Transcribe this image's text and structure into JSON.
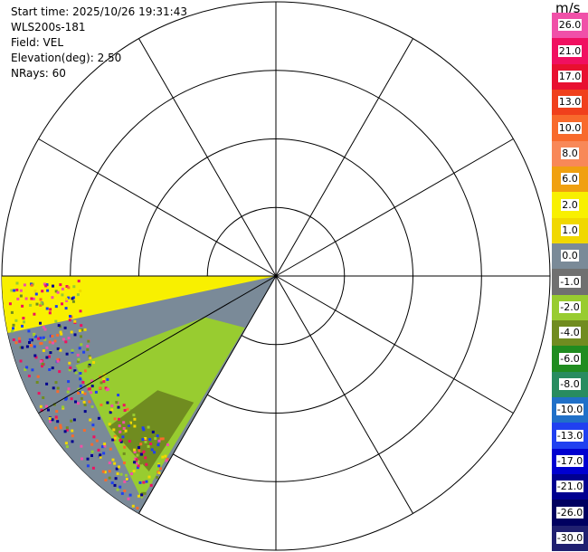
{
  "info": {
    "start_time": "Start time: 2025/10/26 19:31:43",
    "instrument": "WLS200s-181",
    "field": "Field: VEL",
    "elevation": "Elevation(deg): 2.50",
    "nrays": "NRays: 60"
  },
  "colorbar": {
    "unit": "m/s",
    "ticks": [
      "26.0",
      "21.0",
      "17.0",
      "13.0",
      "10.0",
      "8.0",
      "6.0",
      "2.0",
      "1.0",
      "0.0",
      "-1.0",
      "-2.0",
      "-4.0",
      "-6.0",
      "-8.0",
      "-10.0",
      "-13.0",
      "-17.0",
      "-21.0",
      "-26.0",
      "-30.0"
    ],
    "colors": [
      "#f050a8",
      "#f01060",
      "#e81030",
      "#f0401c",
      "#f86a2c",
      "#f88858",
      "#f0a010",
      "#f8f000",
      "#f0d800",
      "#7a8a98",
      "#707070",
      "#98cc30",
      "#708c20",
      "#208c20",
      "#288c60",
      "#2070c8",
      "#2040f0",
      "#0000d0",
      "#000090",
      "#000060",
      "#202070"
    ]
  },
  "chart_data": {
    "type": "ppi",
    "rings": 4,
    "spokes_deg": 30,
    "sector_deg": [
      210,
      270
    ],
    "colorbar_range": [
      -30.0,
      26.0
    ]
  }
}
